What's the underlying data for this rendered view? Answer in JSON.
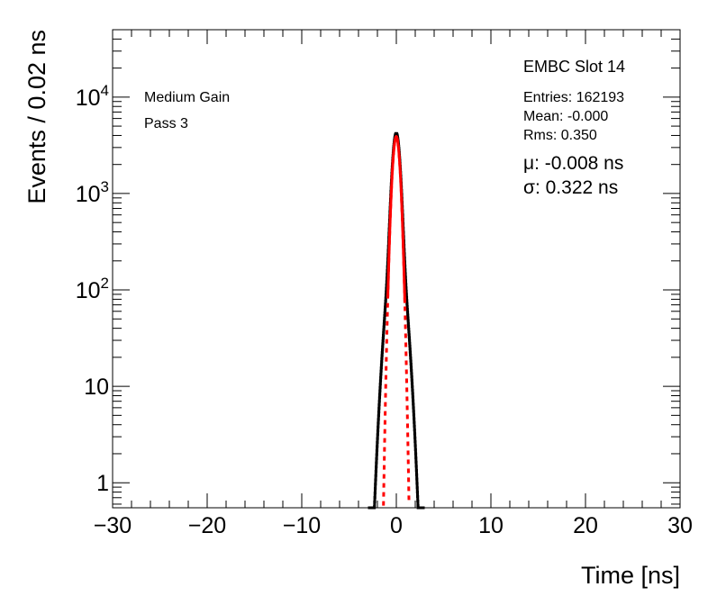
{
  "chart_data": {
    "type": "histogram",
    "title": "",
    "xlabel": "Time [ns]",
    "ylabel": "Events / 0.02 ns",
    "xlim": [
      -30,
      30
    ],
    "ylim": [
      0.55,
      50000
    ],
    "yscale": "log",
    "x_ticks": [
      -30,
      -20,
      -10,
      0,
      10,
      20,
      30
    ],
    "x_tick_labels": [
      "−30",
      "−20",
      "−10",
      "0",
      "10",
      "20",
      "30"
    ],
    "y_ticks": [
      1,
      10,
      100,
      1000,
      10000
    ],
    "y_tick_labels": [
      {
        "base": "1",
        "exp": ""
      },
      {
        "base": "10",
        "exp": ""
      },
      {
        "base": "10",
        "exp": "2"
      },
      {
        "base": "10",
        "exp": "3"
      },
      {
        "base": "10",
        "exp": "4"
      }
    ],
    "annotations_left": [
      "Medium Gain",
      "Pass 3"
    ],
    "stats_title": "EMBC Slot 14",
    "stats": [
      "Entries: 162193",
      "Mean: -0.000",
      "Rms: 0.350"
    ],
    "fit_results": [
      "μ: -0.008 ns",
      "σ: 0.322 ns"
    ],
    "histogram": {
      "bin_width": 0.02,
      "color": "#000000",
      "data_mean": -0.0,
      "data_rms": 0.35,
      "entries": 162193
    },
    "fit": {
      "type": "gaussian",
      "mean": -0.008,
      "sigma": 0.322,
      "amplitude": 3900,
      "fit_range": [
        -0.9,
        0.9
      ],
      "color": "#ff0000"
    }
  }
}
